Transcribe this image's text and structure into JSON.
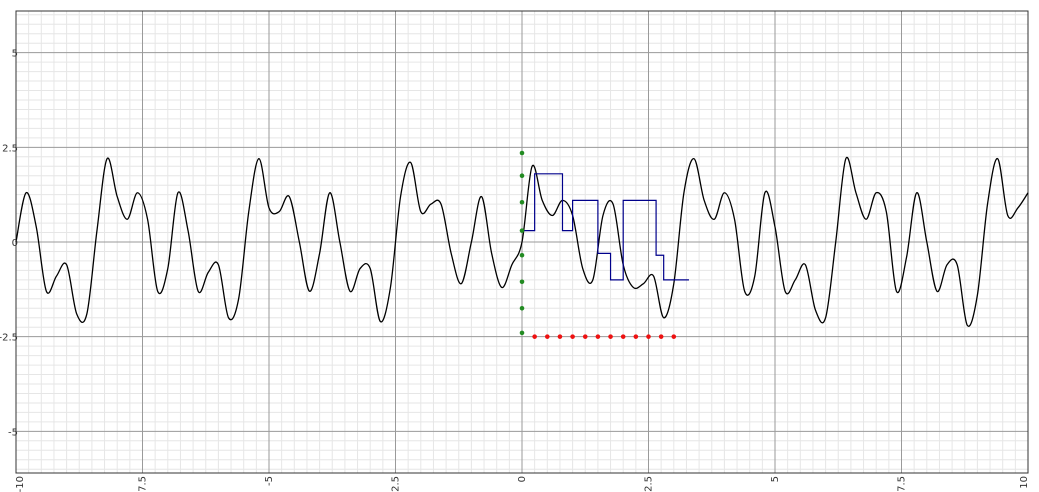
{
  "chart_data": {
    "type": "line",
    "xlim": [
      -10,
      10
    ],
    "ylim": [
      -6.1,
      6.1
    ],
    "grid": true,
    "x_ticks": [
      {
        "value": -10,
        "label": "-10"
      },
      {
        "value": -7.5,
        "label": "-7.5"
      },
      {
        "value": -5,
        "label": "-5"
      },
      {
        "value": -2.5,
        "label": "-2.5"
      },
      {
        "value": 0,
        "label": "0"
      },
      {
        "value": 2.5,
        "label": "2.5"
      },
      {
        "value": 5,
        "label": "5"
      },
      {
        "value": 7.5,
        "label": "7.5"
      },
      {
        "value": 10,
        "label": "10"
      }
    ],
    "y_ticks": [
      {
        "value": 5,
        "label": "5"
      },
      {
        "value": 2.5,
        "label": "2.5"
      },
      {
        "value": 0,
        "label": "0"
      },
      {
        "value": -2.5,
        "label": "-2.5"
      },
      {
        "value": -5,
        "label": "-5"
      }
    ],
    "series": [
      {
        "kind": "curve",
        "color": "#000000",
        "x": [
          -10,
          -9.8,
          -9.6,
          -9.4,
          -9.2,
          -9.0,
          -8.8,
          -8.6,
          -8.4,
          -8.2,
          -8.0,
          -7.8,
          -7.6,
          -7.4,
          -7.2,
          -7.0,
          -6.8,
          -6.6,
          -6.4,
          -6.2,
          -6.0,
          -5.8,
          -5.6,
          -5.4,
          -5.2,
          -5.0,
          -4.8,
          -4.6,
          -4.4,
          -4.2,
          -4.0,
          -3.8,
          -3.6,
          -3.4,
          -3.2,
          -3.0,
          -2.8,
          -2.6,
          -2.4,
          -2.2,
          -2.0,
          -1.8,
          -1.6,
          -1.4,
          -1.2,
          -1.0,
          -0.8,
          -0.6,
          -0.4,
          -0.2,
          0.0,
          0.2,
          0.4,
          0.6,
          0.8,
          1.0,
          1.2,
          1.4,
          1.6,
          1.8,
          2.0,
          2.2,
          2.4,
          2.6,
          2.8,
          3.0,
          3.2,
          3.4,
          3.6,
          3.8,
          4.0,
          4.2,
          4.4,
          4.6,
          4.8,
          5.0,
          5.2,
          5.4,
          5.6,
          5.8,
          6.0,
          6.2,
          6.4,
          6.6,
          6.8,
          7.0,
          7.2,
          7.4,
          7.6,
          7.8,
          8.0,
          8.2,
          8.4,
          8.6,
          8.8,
          9.0,
          9.2,
          9.4,
          9.6,
          9.8,
          10.0
        ],
        "y": [
          0.0,
          1.3,
          0.4,
          -1.3,
          -0.9,
          -0.6,
          -1.9,
          -1.9,
          0.3,
          2.2,
          1.2,
          0.6,
          1.3,
          0.6,
          -1.3,
          -0.7,
          1.3,
          0.3,
          -1.3,
          -0.8,
          -0.6,
          -2.0,
          -1.5,
          0.8,
          2.2,
          0.9,
          0.8,
          1.2,
          0.0,
          -1.3,
          -0.3,
          1.3,
          0.0,
          -1.3,
          -0.7,
          -0.7,
          -2.1,
          -1.2,
          1.2,
          2.1,
          0.8,
          1.0,
          1.0,
          -0.3,
          -1.1,
          0.0,
          1.2,
          -0.3,
          -1.2,
          -0.6,
          0.0,
          2.0,
          1.1,
          0.7,
          1.1,
          0.7,
          -0.7,
          -1.0,
          0.7,
          1.0,
          -0.6,
          -1.2,
          -1.1,
          -0.9,
          -2.0,
          -1.1,
          1.3,
          2.2,
          1.1,
          0.6,
          1.3,
          0.6,
          -1.3,
          -0.9,
          1.3,
          0.4,
          -1.3,
          -1.0,
          -0.6,
          -1.8,
          -2.0,
          0.0,
          2.2,
          1.3,
          0.6,
          1.3,
          0.8,
          -1.3,
          -0.4,
          1.3,
          0.0,
          -1.3,
          -0.6,
          -0.6,
          -2.2,
          -1.4,
          1.0,
          2.2,
          0.7,
          0.9,
          1.3
        ]
      },
      {
        "kind": "step",
        "color": "#00008b",
        "x": [
          0.0,
          0.25,
          0.8,
          1.0,
          1.5,
          1.75,
          2.0,
          2.1,
          2.65,
          2.8,
          3.3
        ],
        "y": [
          0.3,
          1.8,
          0.3,
          1.1,
          -0.3,
          -1.0,
          1.1,
          1.1,
          -0.35,
          -1.0,
          -1.0
        ]
      },
      {
        "kind": "points",
        "color": "#228b22",
        "x": [
          0,
          0,
          0,
          0,
          0,
          0,
          0,
          0
        ],
        "y": [
          2.35,
          1.75,
          1.05,
          0.3,
          -0.35,
          -1.05,
          -1.75,
          -2.4
        ]
      },
      {
        "kind": "points",
        "color": "#ee1111",
        "x": [
          0.25,
          0.5,
          0.75,
          1.0,
          1.25,
          1.5,
          1.75,
          2.0,
          2.25,
          2.5,
          2.75,
          3.0
        ],
        "y": [
          -2.5,
          -2.5,
          -2.5,
          -2.5,
          -2.5,
          -2.5,
          -2.5,
          -2.5,
          -2.5,
          -2.5,
          -2.5,
          -2.5
        ]
      }
    ]
  }
}
